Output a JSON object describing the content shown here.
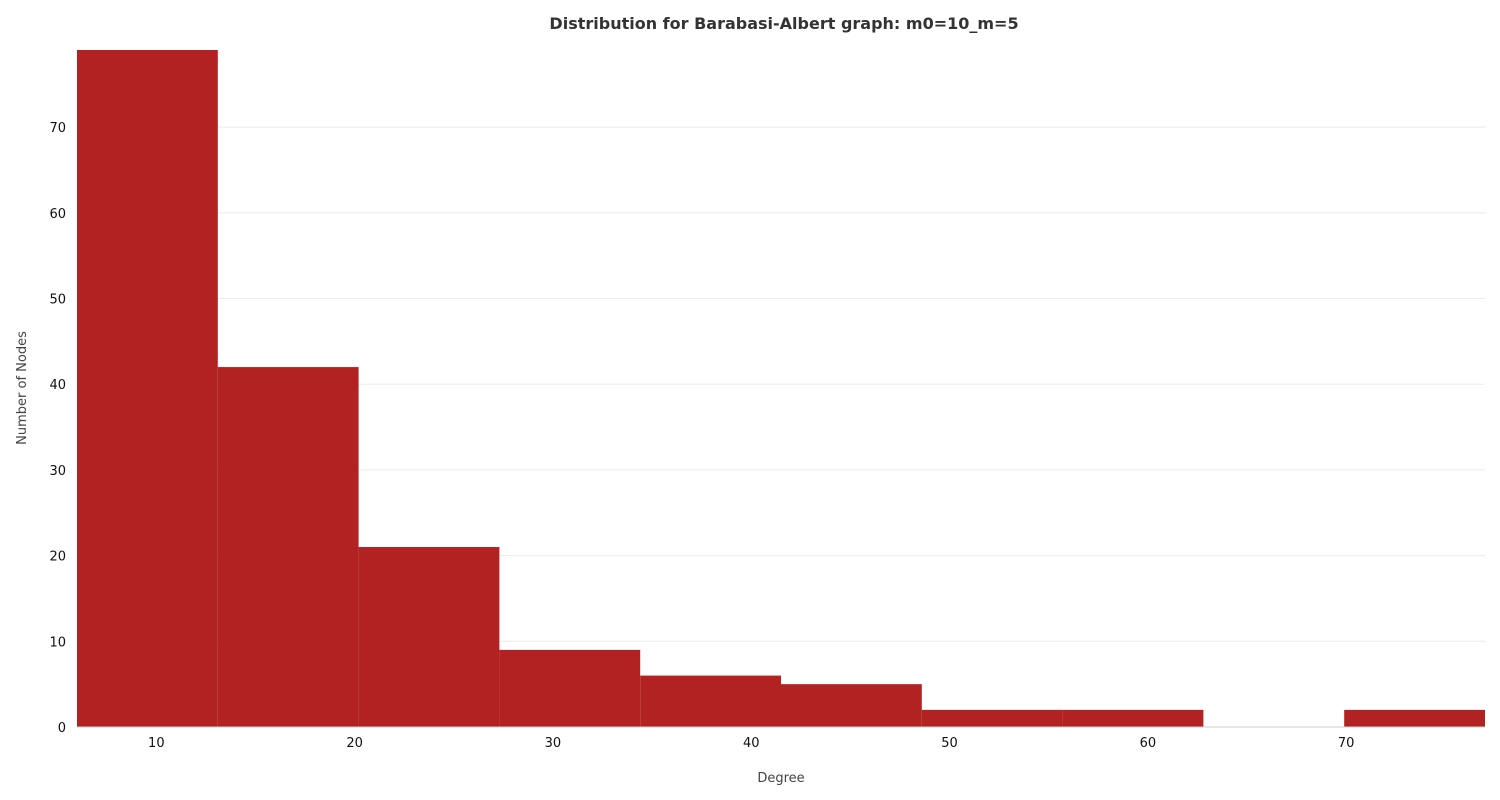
{
  "chart_data": {
    "type": "bar",
    "title": "Distribution for Barabasi-Albert graph: m0=10_m=5",
    "xlabel": "Degree",
    "ylabel": "Number of Nodes",
    "xlim": [
      6,
      77
    ],
    "ylim": [
      0,
      79
    ],
    "grid": "horizontal",
    "bar_color": "#b22222",
    "x_ticks": [
      10,
      20,
      30,
      40,
      50,
      60,
      70
    ],
    "y_ticks": [
      0,
      10,
      20,
      30,
      40,
      50,
      60,
      70
    ],
    "bins": [
      {
        "x0": 6,
        "x1": 13.1,
        "value": 79
      },
      {
        "x0": 13.1,
        "x1": 20.2,
        "value": 42
      },
      {
        "x0": 20.2,
        "x1": 27.3,
        "value": 21
      },
      {
        "x0": 27.3,
        "x1": 34.4,
        "value": 9
      },
      {
        "x0": 34.4,
        "x1": 41.5,
        "value": 6
      },
      {
        "x0": 41.5,
        "x1": 48.6,
        "value": 5
      },
      {
        "x0": 48.6,
        "x1": 55.7,
        "value": 2
      },
      {
        "x0": 55.7,
        "x1": 62.8,
        "value": 2
      },
      {
        "x0": 62.8,
        "x1": 69.9,
        "value": 0
      },
      {
        "x0": 69.9,
        "x1": 77,
        "value": 2
      }
    ]
  }
}
